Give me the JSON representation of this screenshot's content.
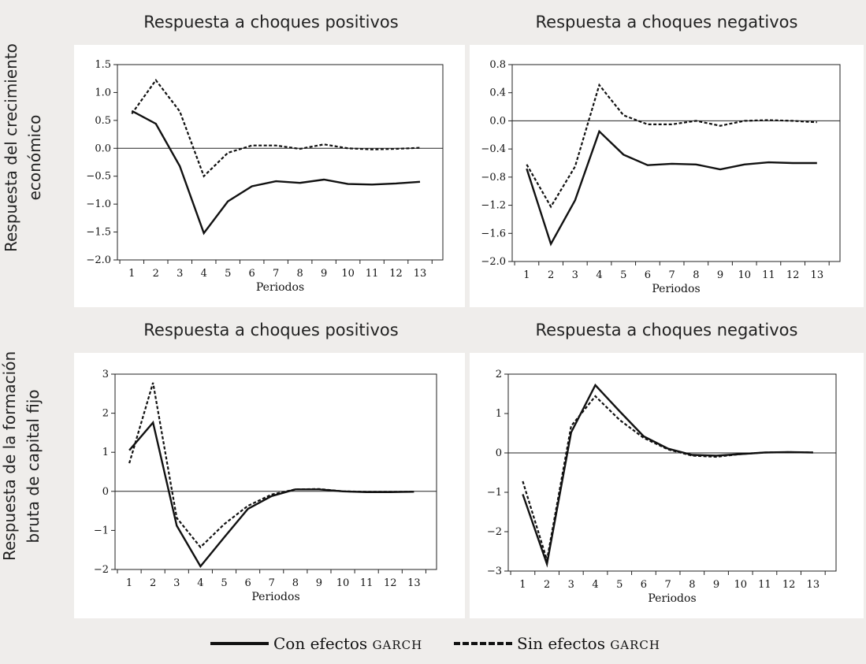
{
  "rows": [
    {
      "label_line1": "Respuesta del crecimiento",
      "label_line2": "económico"
    },
    {
      "label_line1": "Respuesta de la formación",
      "label_line2": "bruta de capital fijo"
    }
  ],
  "legend": {
    "solid": {
      "prefix": "Con efectos ",
      "sc": "GARCH"
    },
    "dashed": {
      "prefix": "Sin efectos ",
      "sc": "GARCH"
    }
  },
  "chart_data": [
    {
      "type": "line",
      "title": "Respuesta a choques positivos",
      "xlabel": "Periodos",
      "x": [
        1,
        2,
        3,
        4,
        5,
        6,
        7,
        8,
        9,
        10,
        11,
        12,
        13
      ],
      "ylim": [
        -2.0,
        1.5
      ],
      "yticks": [
        -2.0,
        -1.5,
        -1.0,
        -0.5,
        0.0,
        0.5,
        1.0,
        1.5
      ],
      "ytick_labels": [
        "−2.0",
        "−1.5",
        "−1.0",
        "−0.5",
        "0.0",
        "0.5",
        "1.0",
        "1.5"
      ],
      "series": [
        {
          "name": "Con efectos GARCH",
          "style": "solid",
          "values": [
            0.67,
            0.44,
            -0.32,
            -1.52,
            -0.95,
            -0.68,
            -0.59,
            -0.62,
            -0.56,
            -0.64,
            -0.65,
            -0.63,
            -0.6
          ]
        },
        {
          "name": "Sin efectos GARCH",
          "style": "dashed",
          "values": [
            0.62,
            1.22,
            0.66,
            -0.5,
            -0.08,
            0.05,
            0.05,
            -0.01,
            0.07,
            0.0,
            -0.02,
            -0.01,
            0.01
          ]
        }
      ]
    },
    {
      "type": "line",
      "title": "Respuesta a choques negativos",
      "xlabel": "Periodos",
      "x": [
        1,
        2,
        3,
        4,
        5,
        6,
        7,
        8,
        9,
        10,
        11,
        12,
        13
      ],
      "ylim": [
        -2.0,
        0.8
      ],
      "yticks": [
        -2.0,
        -1.6,
        -1.2,
        -0.8,
        -0.4,
        0.0,
        0.4,
        0.8
      ],
      "ytick_labels": [
        "−2.0",
        "−1.6",
        "−1.2",
        "−0.8",
        "−0.4",
        "0.0",
        "0.4",
        "0.8"
      ],
      "series": [
        {
          "name": "Con efectos GARCH",
          "style": "solid",
          "values": [
            -0.68,
            -1.75,
            -1.13,
            -0.15,
            -0.48,
            -0.63,
            -0.61,
            -0.62,
            -0.69,
            -0.62,
            -0.59,
            -0.6,
            -0.6
          ]
        },
        {
          "name": "Sin efectos GARCH",
          "style": "dashed",
          "values": [
            -0.62,
            -1.22,
            -0.65,
            0.51,
            0.08,
            -0.05,
            -0.05,
            0.0,
            -0.07,
            0.0,
            0.01,
            0.0,
            -0.02
          ]
        }
      ]
    },
    {
      "type": "line",
      "title": "Respuesta a choques positivos",
      "xlabel": "Periodos",
      "x": [
        1,
        2,
        3,
        4,
        5,
        6,
        7,
        8,
        9,
        10,
        11,
        12,
        13
      ],
      "ylim": [
        -2,
        3
      ],
      "yticks": [
        -2,
        -1,
        0,
        1,
        2,
        3
      ],
      "ytick_labels": [
        "−2",
        "−1",
        "0",
        "1",
        "2",
        "3"
      ],
      "series": [
        {
          "name": "Con efectos GARCH",
          "style": "solid",
          "values": [
            1.05,
            1.76,
            -0.88,
            -1.92,
            -1.18,
            -0.45,
            -0.12,
            0.05,
            0.05,
            0.0,
            -0.02,
            -0.02,
            -0.01
          ]
        },
        {
          "name": "Sin efectos GARCH",
          "style": "dashed",
          "values": [
            0.72,
            2.78,
            -0.68,
            -1.43,
            -0.84,
            -0.37,
            -0.08,
            0.05,
            0.06,
            0.0,
            -0.01,
            -0.01,
            -0.01
          ]
        }
      ]
    },
    {
      "type": "line",
      "title": "Respuesta a choques negativos",
      "xlabel": "Periodos",
      "x": [
        1,
        2,
        3,
        4,
        5,
        6,
        7,
        8,
        9,
        10,
        11,
        12,
        13
      ],
      "ylim": [
        -3,
        2
      ],
      "yticks": [
        -3,
        -2,
        -1,
        0,
        1,
        2
      ],
      "ytick_labels": [
        "−3",
        "−2",
        "−1",
        "0",
        "1",
        "2"
      ],
      "series": [
        {
          "name": "Con efectos GARCH",
          "style": "solid",
          "values": [
            -1.05,
            -2.82,
            0.52,
            1.72,
            1.06,
            0.42,
            0.11,
            -0.05,
            -0.07,
            -0.03,
            0.01,
            0.02,
            0.01
          ]
        },
        {
          "name": "Sin efectos GARCH",
          "style": "dashed",
          "values": [
            -0.72,
            -2.72,
            0.68,
            1.44,
            0.84,
            0.38,
            0.09,
            -0.07,
            -0.1,
            -0.03,
            0.01,
            0.02,
            0.01
          ]
        }
      ]
    }
  ]
}
